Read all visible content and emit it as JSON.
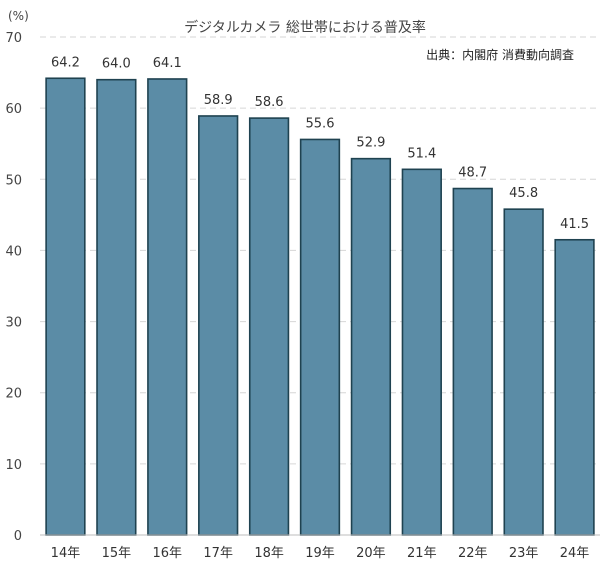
{
  "chart_data": {
    "type": "bar",
    "title": "デジタルカメラ 総世帯における普及率",
    "source": "出典：内閣府 消費動向調査",
    "ylabel": "(%)",
    "xlabel": "",
    "ylim": [
      0,
      70
    ],
    "yticks": [
      "0",
      "10",
      "20",
      "30",
      "40",
      "50",
      "60",
      "70"
    ],
    "grid": true,
    "categories": [
      "14年",
      "15年",
      "16年",
      "17年",
      "18年",
      "19年",
      "20年",
      "21年",
      "22年",
      "23年",
      "24年"
    ],
    "values": [
      64.2,
      64.0,
      64.1,
      58.9,
      58.6,
      55.6,
      52.9,
      51.4,
      48.7,
      45.8,
      41.5
    ],
    "labels": [
      "64.2",
      "64.0",
      "64.1",
      "58.9",
      "58.6",
      "55.6",
      "52.9",
      "51.4",
      "48.7",
      "45.8",
      "41.5"
    ],
    "colors": {
      "bar": "#5b8ca6",
      "bar_edge": "#1f4250"
    }
  }
}
